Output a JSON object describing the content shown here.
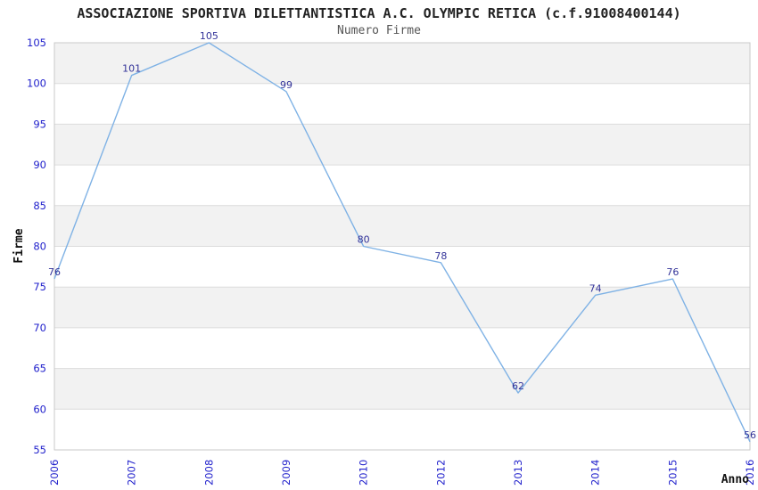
{
  "header": {
    "title": "ASSOCIAZIONE SPORTIVA DILETTANTISTICA A.C. OLYMPIC RETICA (c.f.91008400144)"
  },
  "chart_data": {
    "type": "line",
    "title": "Numero Firme",
    "categories": [
      "2006",
      "2007",
      "2008",
      "2009",
      "2010",
      "2012",
      "2013",
      "2014",
      "2015",
      "2016"
    ],
    "values": [
      76,
      101,
      105,
      99,
      80,
      78,
      62,
      74,
      76,
      56
    ],
    "xlabel": "Anno",
    "ylabel": "Firme",
    "ylim": [
      55,
      105
    ],
    "ytick_step": 5,
    "yticks": [
      55,
      60,
      65,
      70,
      75,
      80,
      85,
      90,
      95,
      100,
      105
    ],
    "grid": "horizontal-gridlines-with-alternating-bands",
    "legend": "none",
    "data_labels_shown": true,
    "colors": {
      "line": "#7FB2E5",
      "tick_label": "#2222CC",
      "data_label": "#333399",
      "band": "#F2F2F2",
      "gridline": "#DCDCDC",
      "plot_border": "#C9C9C9",
      "title": "#222222",
      "subtitle": "#555555",
      "axis_title": "#111111",
      "background": "#FFFFFF"
    }
  }
}
